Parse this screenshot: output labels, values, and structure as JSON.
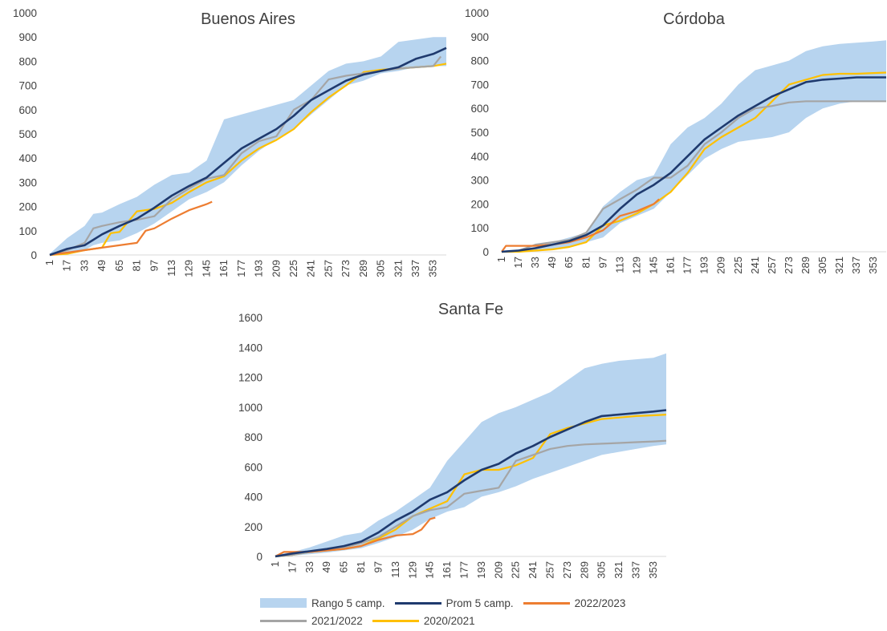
{
  "chart_data": [
    {
      "type": "area",
      "title": "Buenos Aires",
      "ylim": [
        0,
        1000
      ],
      "yticks": [
        0,
        100,
        200,
        300,
        400,
        500,
        600,
        700,
        800,
        900,
        1000
      ],
      "xticks": [
        "1",
        "17",
        "33",
        "49",
        "65",
        "81",
        "97",
        "113",
        "129",
        "145",
        "161",
        "177",
        "193",
        "209",
        "225",
        "241",
        "257",
        "273",
        "289",
        "305",
        "321",
        "337",
        "353"
      ],
      "xlim": [
        1,
        365
      ],
      "band": {
        "name": "Rango 5 camp.",
        "x": [
          1,
          17,
          33,
          41,
          49,
          65,
          81,
          97,
          113,
          129,
          145,
          161,
          177,
          193,
          209,
          225,
          241,
          257,
          273,
          289,
          305,
          321,
          337,
          353,
          365
        ],
        "low": [
          0,
          5,
          20,
          40,
          50,
          60,
          90,
          130,
          180,
          230,
          260,
          300,
          370,
          430,
          480,
          520,
          580,
          640,
          700,
          720,
          750,
          760,
          775,
          780,
          780
        ],
        "high": [
          5,
          70,
          120,
          170,
          175,
          210,
          240,
          290,
          330,
          340,
          390,
          560,
          580,
          600,
          620,
          640,
          700,
          760,
          790,
          800,
          820,
          880,
          890,
          900,
          900
        ]
      },
      "series": [
        {
          "name": "Prom 5 camp.",
          "x": [
            1,
            17,
            33,
            49,
            65,
            81,
            97,
            113,
            129,
            145,
            161,
            177,
            193,
            209,
            225,
            241,
            257,
            273,
            289,
            305,
            321,
            337,
            353,
            365
          ],
          "y": [
            0,
            25,
            40,
            85,
            120,
            150,
            195,
            245,
            285,
            320,
            380,
            440,
            480,
            520,
            575,
            640,
            680,
            720,
            745,
            760,
            775,
            810,
            830,
            855
          ]
        },
        {
          "name": "2022/2023",
          "x": [
            1,
            17,
            33,
            49,
            65,
            81,
            89,
            97,
            113,
            129,
            145,
            150
          ],
          "y": [
            0,
            10,
            20,
            30,
            40,
            50,
            100,
            110,
            150,
            185,
            210,
            220
          ]
        },
        {
          "name": "2021/2022",
          "x": [
            1,
            17,
            33,
            41,
            49,
            65,
            81,
            97,
            113,
            129,
            145,
            161,
            177,
            193,
            209,
            225,
            241,
            257,
            273,
            289,
            305,
            321,
            337,
            353,
            360
          ],
          "y": [
            0,
            20,
            50,
            110,
            120,
            135,
            145,
            160,
            230,
            275,
            315,
            330,
            420,
            470,
            490,
            600,
            640,
            725,
            740,
            750,
            760,
            770,
            775,
            780,
            820
          ]
        },
        {
          "name": "2020/2021",
          "x": [
            1,
            17,
            33,
            49,
            57,
            65,
            81,
            97,
            113,
            129,
            145,
            161,
            177,
            193,
            209,
            225,
            241,
            257,
            273,
            289,
            305,
            321,
            337,
            353,
            365
          ],
          "y": [
            0,
            5,
            20,
            30,
            90,
            95,
            180,
            190,
            215,
            260,
            300,
            325,
            390,
            440,
            475,
            520,
            590,
            650,
            700,
            755,
            765,
            770,
            775,
            780,
            790
          ]
        }
      ]
    },
    {
      "type": "area",
      "title": "Córdoba",
      "ylim": [
        0,
        1000
      ],
      "yticks": [
        0,
        100,
        200,
        300,
        400,
        500,
        600,
        700,
        800,
        900,
        1000
      ],
      "xticks": [
        "1",
        "17",
        "33",
        "49",
        "65",
        "81",
        "97",
        "113",
        "129",
        "145",
        "161",
        "177",
        "193",
        "209",
        "225",
        "241",
        "257",
        "273",
        "289",
        "305",
        "321",
        "337",
        "353"
      ],
      "xlim": [
        1,
        365
      ],
      "band": {
        "name": "Rango 5 camp.",
        "x": [
          1,
          17,
          33,
          49,
          65,
          81,
          97,
          113,
          129,
          145,
          161,
          177,
          193,
          209,
          225,
          241,
          257,
          273,
          289,
          305,
          321,
          337,
          353,
          365
        ],
        "low": [
          0,
          0,
          5,
          10,
          20,
          40,
          60,
          120,
          150,
          180,
          250,
          320,
          390,
          430,
          460,
          470,
          480,
          500,
          560,
          600,
          620,
          630,
          630,
          630
        ],
        "high": [
          5,
          10,
          20,
          40,
          60,
          80,
          190,
          250,
          300,
          320,
          450,
          520,
          560,
          620,
          700,
          760,
          780,
          800,
          840,
          860,
          870,
          875,
          880,
          885
        ]
      },
      "series": [
        {
          "name": "Prom 5 camp.",
          "x": [
            1,
            17,
            33,
            49,
            65,
            81,
            97,
            113,
            129,
            145,
            161,
            177,
            193,
            209,
            225,
            241,
            257,
            273,
            289,
            305,
            321,
            337,
            353,
            365
          ],
          "y": [
            0,
            5,
            15,
            30,
            45,
            70,
            110,
            180,
            240,
            280,
            330,
            400,
            470,
            520,
            570,
            610,
            650,
            680,
            710,
            720,
            725,
            730,
            730,
            730
          ]
        },
        {
          "name": "2022/2023",
          "x": [
            1,
            5,
            33,
            49,
            65,
            81,
            97,
            113,
            129,
            145,
            150
          ],
          "y": [
            0,
            25,
            25,
            30,
            40,
            60,
            90,
            150,
            170,
            200,
            220
          ]
        },
        {
          "name": "2021/2022",
          "x": [
            1,
            17,
            33,
            49,
            65,
            81,
            97,
            113,
            129,
            145,
            161,
            177,
            193,
            209,
            225,
            241,
            257,
            273,
            289,
            305,
            321,
            337,
            353,
            365
          ],
          "y": [
            0,
            5,
            30,
            40,
            50,
            80,
            180,
            220,
            260,
            310,
            310,
            360,
            450,
            500,
            560,
            600,
            610,
            625,
            630,
            630,
            630,
            630,
            630,
            630
          ]
        },
        {
          "name": "2020/2021",
          "x": [
            1,
            17,
            33,
            49,
            65,
            81,
            97,
            113,
            129,
            145,
            161,
            177,
            193,
            209,
            225,
            241,
            257,
            273,
            289,
            305,
            321,
            337,
            353,
            365
          ],
          "y": [
            0,
            0,
            5,
            10,
            20,
            40,
            110,
            130,
            160,
            200,
            250,
            330,
            430,
            480,
            520,
            560,
            630,
            700,
            720,
            740,
            745,
            745,
            748,
            750
          ]
        }
      ]
    },
    {
      "type": "area",
      "title": "Santa Fe",
      "ylim": [
        0,
        1600
      ],
      "yticks": [
        0,
        200,
        400,
        600,
        800,
        1000,
        1200,
        1400,
        1600
      ],
      "xticks": [
        "1",
        "17",
        "33",
        "49",
        "65",
        "81",
        "97",
        "113",
        "129",
        "145",
        "161",
        "177",
        "193",
        "209",
        "225",
        "241",
        "257",
        "273",
        "289",
        "305",
        "321",
        "337",
        "353"
      ],
      "xlim": [
        1,
        365
      ],
      "band": {
        "name": "Rango 5 camp.",
        "x": [
          1,
          17,
          33,
          49,
          65,
          81,
          97,
          113,
          129,
          145,
          161,
          177,
          193,
          209,
          225,
          241,
          257,
          273,
          289,
          305,
          321,
          337,
          353,
          365
        ],
        "low": [
          0,
          5,
          15,
          25,
          40,
          55,
          90,
          130,
          180,
          250,
          300,
          330,
          400,
          430,
          470,
          520,
          560,
          600,
          640,
          680,
          700,
          720,
          740,
          750
        ],
        "high": [
          10,
          30,
          60,
          100,
          140,
          160,
          240,
          300,
          380,
          460,
          640,
          770,
          900,
          960,
          1000,
          1050,
          1100,
          1180,
          1260,
          1290,
          1310,
          1320,
          1330,
          1360
        ]
      },
      "series": [
        {
          "name": "Prom 5 camp.",
          "x": [
            1,
            17,
            33,
            49,
            65,
            81,
            97,
            113,
            129,
            145,
            161,
            177,
            193,
            209,
            225,
            241,
            257,
            273,
            289,
            305,
            321,
            337,
            353,
            365
          ],
          "y": [
            0,
            20,
            35,
            50,
            70,
            100,
            160,
            240,
            300,
            380,
            430,
            510,
            580,
            620,
            690,
            740,
            800,
            850,
            900,
            940,
            950,
            960,
            970,
            980
          ]
        },
        {
          "name": "2022/2023",
          "x": [
            1,
            9,
            33,
            49,
            65,
            81,
            97,
            113,
            129,
            137,
            145,
            150
          ],
          "y": [
            0,
            30,
            30,
            40,
            50,
            70,
            110,
            140,
            150,
            180,
            250,
            260
          ]
        },
        {
          "name": "2021/2022",
          "x": [
            1,
            17,
            33,
            49,
            65,
            81,
            97,
            113,
            129,
            145,
            161,
            177,
            193,
            209,
            225,
            241,
            257,
            273,
            289,
            305,
            321,
            337,
            353,
            365
          ],
          "y": [
            0,
            10,
            30,
            45,
            60,
            90,
            130,
            200,
            270,
            310,
            330,
            420,
            440,
            460,
            640,
            680,
            720,
            740,
            750,
            755,
            760,
            765,
            770,
            775
          ]
        },
        {
          "name": "2020/2021",
          "x": [
            1,
            17,
            33,
            49,
            65,
            81,
            97,
            113,
            129,
            145,
            161,
            177,
            193,
            209,
            225,
            241,
            257,
            273,
            289,
            305,
            321,
            337,
            353,
            365
          ],
          "y": [
            0,
            10,
            30,
            40,
            50,
            70,
            120,
            180,
            270,
            320,
            370,
            550,
            580,
            580,
            610,
            660,
            820,
            860,
            890,
            920,
            930,
            940,
            945,
            950
          ]
        }
      ]
    }
  ],
  "legend": {
    "items": [
      {
        "label": "Rango 5 camp.",
        "kind": "fill",
        "color": "#b7d4ef"
      },
      {
        "label": "Prom 5 camp.",
        "kind": "line",
        "color": "#1f3a6e"
      },
      {
        "label": "2022/2023",
        "kind": "line",
        "color": "#ed7d31"
      },
      {
        "label": "2021/2022",
        "kind": "line",
        "color": "#a5a5a5"
      },
      {
        "label": "2020/2021",
        "kind": "line",
        "color": "#ffc000"
      }
    ]
  },
  "colors": {
    "band": "#b7d4ef",
    "prom": "#1f3a6e",
    "s2223": "#ed7d31",
    "s2122": "#a5a5a5",
    "s2021": "#ffc000"
  }
}
